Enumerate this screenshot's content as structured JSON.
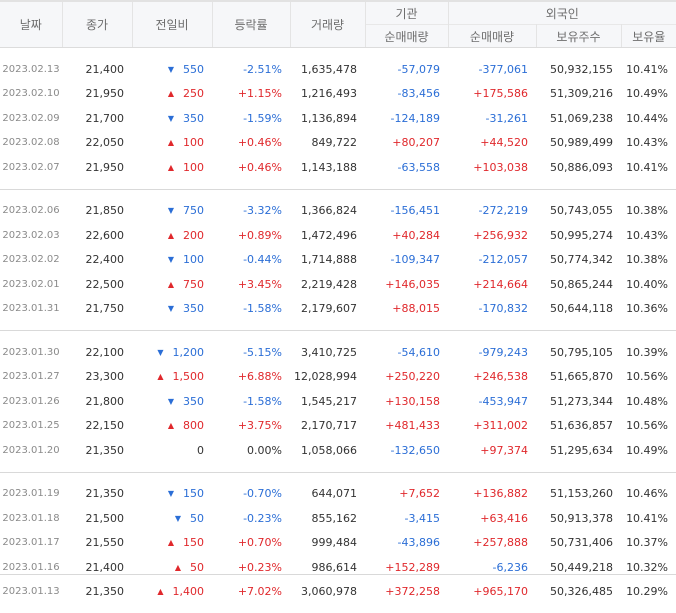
{
  "headers": {
    "date": "날짜",
    "close": "종가",
    "change": "전일비",
    "rate": "등락률",
    "volume": "거래량",
    "institution": "기관",
    "foreign": "외국인",
    "inst_net": "순매매량",
    "foreign_net": "순매매량",
    "foreign_shares": "보유주수",
    "foreign_ratio": "보유율"
  },
  "groups": [
    [
      {
        "date": "2023.02.13",
        "close": "21,400",
        "dir": "down",
        "change": "550",
        "rate": "-2.51%",
        "volume": "1,635,478",
        "inst": "-57,079",
        "fnet": "-377,061",
        "fshares": "50,932,155",
        "fratio": "10.41%"
      },
      {
        "date": "2023.02.10",
        "close": "21,950",
        "dir": "up",
        "change": "250",
        "rate": "+1.15%",
        "volume": "1,216,493",
        "inst": "-83,456",
        "fnet": "+175,586",
        "fshares": "51,309,216",
        "fratio": "10.49%"
      },
      {
        "date": "2023.02.09",
        "close": "21,700",
        "dir": "down",
        "change": "350",
        "rate": "-1.59%",
        "volume": "1,136,894",
        "inst": "-124,189",
        "fnet": "-31,261",
        "fshares": "51,069,238",
        "fratio": "10.44%"
      },
      {
        "date": "2023.02.08",
        "close": "22,050",
        "dir": "up",
        "change": "100",
        "rate": "+0.46%",
        "volume": "849,722",
        "inst": "+80,207",
        "fnet": "+44,520",
        "fshares": "50,989,499",
        "fratio": "10.43%"
      },
      {
        "date": "2023.02.07",
        "close": "21,950",
        "dir": "up",
        "change": "100",
        "rate": "+0.46%",
        "volume": "1,143,188",
        "inst": "-63,558",
        "fnet": "+103,038",
        "fshares": "50,886,093",
        "fratio": "10.41%"
      }
    ],
    [
      {
        "date": "2023.02.06",
        "close": "21,850",
        "dir": "down",
        "change": "750",
        "rate": "-3.32%",
        "volume": "1,366,824",
        "inst": "-156,451",
        "fnet": "-272,219",
        "fshares": "50,743,055",
        "fratio": "10.38%"
      },
      {
        "date": "2023.02.03",
        "close": "22,600",
        "dir": "up",
        "change": "200",
        "rate": "+0.89%",
        "volume": "1,472,496",
        "inst": "+40,284",
        "fnet": "+256,932",
        "fshares": "50,995,274",
        "fratio": "10.43%"
      },
      {
        "date": "2023.02.02",
        "close": "22,400",
        "dir": "down",
        "change": "100",
        "rate": "-0.44%",
        "volume": "1,714,888",
        "inst": "-109,347",
        "fnet": "-212,057",
        "fshares": "50,774,342",
        "fratio": "10.38%"
      },
      {
        "date": "2023.02.01",
        "close": "22,500",
        "dir": "up",
        "change": "750",
        "rate": "+3.45%",
        "volume": "2,219,428",
        "inst": "+146,035",
        "fnet": "+214,664",
        "fshares": "50,865,244",
        "fratio": "10.40%"
      },
      {
        "date": "2023.01.31",
        "close": "21,750",
        "dir": "down",
        "change": "350",
        "rate": "-1.58%",
        "volume": "2,179,607",
        "inst": "+88,015",
        "fnet": "-170,832",
        "fshares": "50,644,118",
        "fratio": "10.36%"
      }
    ],
    [
      {
        "date": "2023.01.30",
        "close": "22,100",
        "dir": "down",
        "change": "1,200",
        "rate": "-5.15%",
        "volume": "3,410,725",
        "inst": "-54,610",
        "fnet": "-979,243",
        "fshares": "50,795,105",
        "fratio": "10.39%"
      },
      {
        "date": "2023.01.27",
        "close": "23,300",
        "dir": "up",
        "change": "1,500",
        "rate": "+6.88%",
        "volume": "12,028,994",
        "inst": "+250,220",
        "fnet": "+246,538",
        "fshares": "51,665,870",
        "fratio": "10.56%"
      },
      {
        "date": "2023.01.26",
        "close": "21,800",
        "dir": "down",
        "change": "350",
        "rate": "-1.58%",
        "volume": "1,545,217",
        "inst": "+130,158",
        "fnet": "-453,947",
        "fshares": "51,273,344",
        "fratio": "10.48%"
      },
      {
        "date": "2023.01.25",
        "close": "22,150",
        "dir": "up",
        "change": "800",
        "rate": "+3.75%",
        "volume": "2,170,717",
        "inst": "+481,433",
        "fnet": "+311,002",
        "fshares": "51,636,857",
        "fratio": "10.56%"
      },
      {
        "date": "2023.01.20",
        "close": "21,350",
        "dir": "flat",
        "change": "0",
        "rate": "0.00%",
        "volume": "1,058,066",
        "inst": "-132,650",
        "fnet": "+97,374",
        "fshares": "51,295,634",
        "fratio": "10.49%"
      }
    ],
    [
      {
        "date": "2023.01.19",
        "close": "21,350",
        "dir": "down",
        "change": "150",
        "rate": "-0.70%",
        "volume": "644,071",
        "inst": "+7,652",
        "fnet": "+136,882",
        "fshares": "51,153,260",
        "fratio": "10.46%"
      },
      {
        "date": "2023.01.18",
        "close": "21,500",
        "dir": "down",
        "change": "50",
        "rate": "-0.23%",
        "volume": "855,162",
        "inst": "-3,415",
        "fnet": "+63,416",
        "fshares": "50,913,378",
        "fratio": "10.41%"
      },
      {
        "date": "2023.01.17",
        "close": "21,550",
        "dir": "up",
        "change": "150",
        "rate": "+0.70%",
        "volume": "999,484",
        "inst": "-43,896",
        "fnet": "+257,888",
        "fshares": "50,731,406",
        "fratio": "10.37%"
      },
      {
        "date": "2023.01.16",
        "close": "21,400",
        "dir": "up",
        "change": "50",
        "rate": "+0.23%",
        "volume": "986,614",
        "inst": "+152,289",
        "fnet": "-6,236",
        "fshares": "50,449,218",
        "fratio": "10.32%"
      },
      {
        "date": "2023.01.13",
        "close": "21,350",
        "dir": "up",
        "change": "1,400",
        "rate": "+7.02%",
        "volume": "3,060,978",
        "inst": "+372,258",
        "fnet": "+965,170",
        "fshares": "50,326,485",
        "fratio": "10.29%"
      }
    ]
  ],
  "colors": {
    "up": "#e0282c",
    "down": "#2b6ed6",
    "header_bg": "#f6f7f9",
    "border": "#d9d9d9"
  },
  "icons": {
    "up": "triangle-up-icon",
    "down": "triangle-down-icon"
  }
}
